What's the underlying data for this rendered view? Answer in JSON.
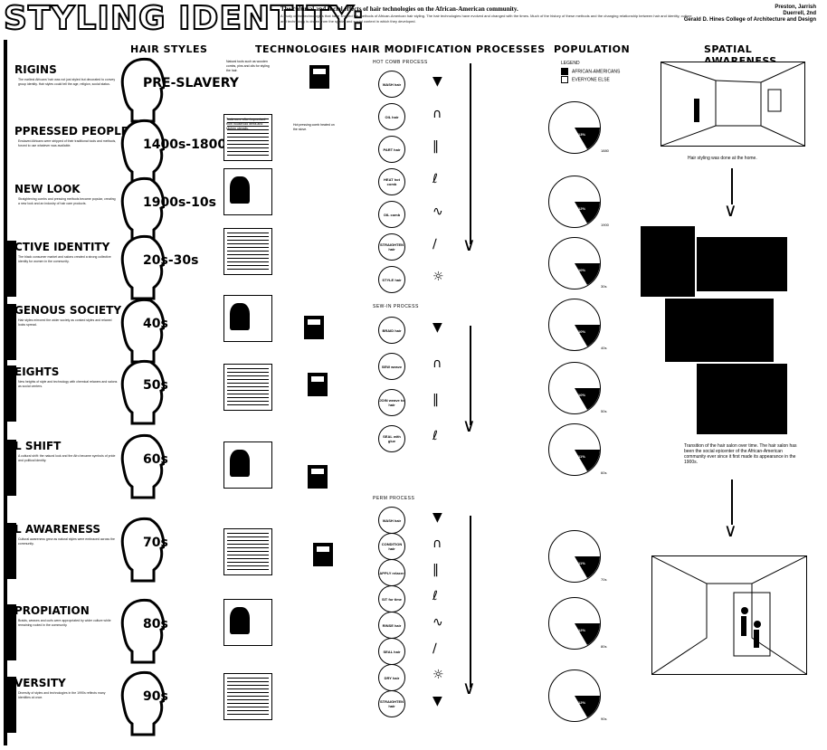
{
  "header": {
    "title": "STYLING IDENTITY:",
    "subtitle": "The cultural and social effects of hair technologies on the African-American community.",
    "intro": "A study of the technologies that have shaped the methods of African-American hair styling. The hair technologies have evolved and changed with the times. Much of the history of these methods and the changing relationship between hair and identity, culture and technology is drawn from the spatial and social context in which they developed.",
    "author_name": "Preston, Jarrish",
    "author_course": "Duerrell, 2nd",
    "author_school": "Gerald D. Hines College of Architecture and Design"
  },
  "columns": {
    "hair_styles": "HAIR STYLES",
    "technologies": "TECHNOLOGIES",
    "processes": "HAIR MODIFICATION PROCESSES",
    "population": "POPULATION",
    "spatial": "SPATIAL AWARENESS"
  },
  "eras": [
    {
      "title": "RIGINS",
      "period": "PRE-SLAVERY",
      "body": "The earliest Africans' hair was not just styled but decorated to convey group identity. Hair styles could tell the age, religion, social status."
    },
    {
      "title": "PPRESSED PEOPLES",
      "period": "1400s-1800s",
      "body": "Enslaved Africans were stripped of their traditional tools and methods, forced to use whatever was available."
    },
    {
      "title": "NEW LOOK",
      "period": "1900s-10s",
      "body": "Straightening combs and pressing methods became popular, creating a new look and an industry of hair care products."
    },
    {
      "title": "CTIVE IDENTITY",
      "period": "20s-30s",
      "body": "The black consumer market and salons created a strong collective identity for women in the community."
    },
    {
      "title": "GENOUS SOCIETY",
      "period": "40s",
      "body": "Hair styles mirrored the wider society as conked styles and relaxed looks spread."
    },
    {
      "title": "EIGHTS",
      "period": "50s",
      "body": "New heights of style and technology with chemical relaxers and salons as social centers."
    },
    {
      "title": "L SHIFT",
      "period": "60s",
      "body": "A cultural shift: the natural look and the Afro became symbols of pride and political identity."
    },
    {
      "title": "L AWARENESS",
      "period": "70s",
      "body": "Cultural awareness grew as natural styles were embraced across the community."
    },
    {
      "title": "PROPIATION",
      "period": "80s",
      "body": "Braids, weaves and curls were appropriated by wider culture while remaining rooted in the community."
    },
    {
      "title": "VERSITY",
      "period": "90s",
      "body": "Diversity of styles and technologies in the 1990s reflects many identities at once."
    }
  ],
  "technologies_text": [
    "Natural tools such as wooden combs, pins and oils for styling the hair.",
    "Tools were often improvised from household items and kitchen utensils.",
    "Hot pressing comb heated on the stove."
  ],
  "processes": {
    "hot_comb_label": "HOT COMB PROCESS",
    "sew_in_label": "SEW-IN PROCESS",
    "perm_label": "PERM PROCESS",
    "hot_comb_steps": [
      "WASH hair",
      "OIL hair",
      "PART hair",
      "HEAT hot comb",
      "OIL comb",
      "STRAIGHTEN hair",
      "STYLE hair"
    ],
    "sew_in_steps": [
      "BRAID hair",
      "SEW weave",
      "JOIN weave to hair",
      "SEAL with glue"
    ],
    "perm_steps": [
      "WASH hair",
      "CONDITION hair",
      "APPLY relaxer",
      "SIT for time",
      "RINSE hair",
      "SEAL hair",
      "DRY hair",
      "STRAIGHTEN hair"
    ]
  },
  "population": {
    "legend_title": "LEGEND",
    "legend_a": "AFRICAN-AMERICANS",
    "legend_b": "EVERYONE ELSE",
    "years": [
      "1880",
      "1900",
      "30s",
      "40s",
      "50s",
      "60s",
      "70s",
      "80s",
      "90s"
    ],
    "slice_labels": [
      "13%",
      "12%",
      "10%",
      "10%",
      "10%",
      "11%",
      "11%",
      "12%",
      "12%"
    ]
  },
  "spatial": {
    "caption_home": "Hair styling was done at the home.",
    "caption_salon": "Transition of the hair salon over time. The hair salon has been the social epicenter of the African-American community ever since it first made its appearance in the 1900s."
  },
  "colors": {
    "ink": "#000000",
    "paper": "#ffffff"
  }
}
